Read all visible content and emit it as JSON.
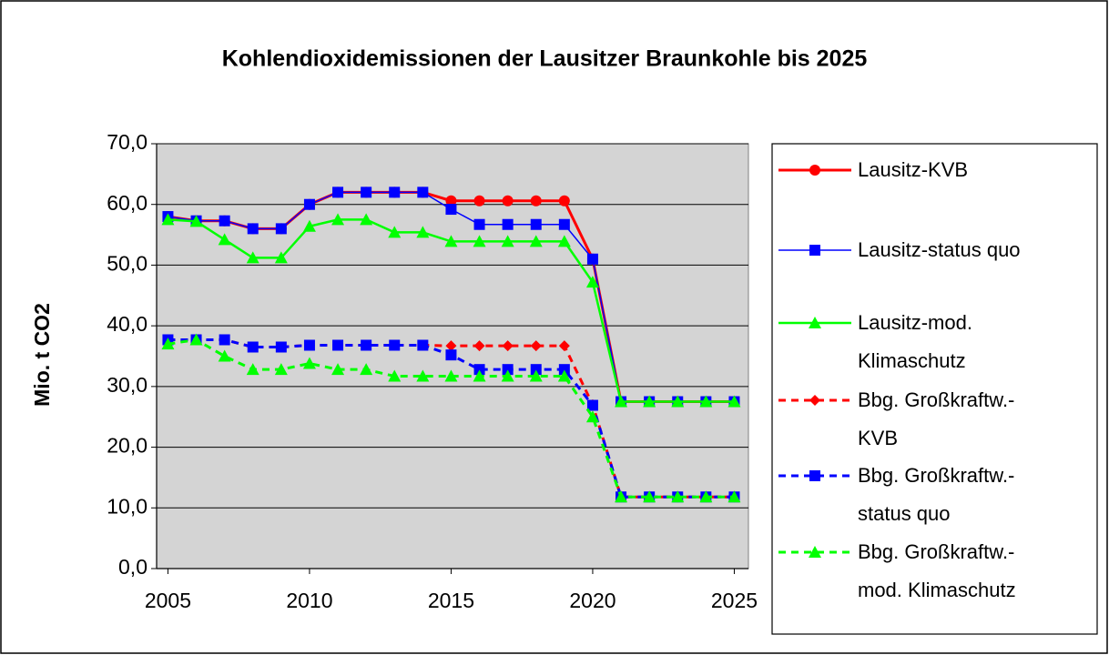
{
  "chart_data": {
    "type": "line",
    "title": "Kohlendioxidemissionen der Lausitzer Braunkohle bis 2025",
    "y_label": "Mio. t CO2",
    "x": [
      2005,
      2006,
      2007,
      2008,
      2009,
      2010,
      2011,
      2012,
      2013,
      2014,
      2015,
      2016,
      2017,
      2018,
      2019,
      2020,
      2021,
      2022,
      2023,
      2024,
      2025
    ],
    "xlim": [
      2004.6,
      2025.5
    ],
    "xticks": [
      2005,
      2010,
      2015,
      2020,
      2025
    ],
    "ylim": [
      0,
      70
    ],
    "yticks": [
      {
        "value": 0,
        "label": "0,0"
      },
      {
        "value": 10,
        "label": "10,0"
      },
      {
        "value": 20,
        "label": "20,0"
      },
      {
        "value": 30,
        "label": "30,0"
      },
      {
        "value": 40,
        "label": "40,0"
      },
      {
        "value": 50,
        "label": "50,0"
      },
      {
        "value": 60,
        "label": "60,0"
      },
      {
        "value": 70,
        "label": "70,0"
      }
    ],
    "grid": true,
    "legend": "right",
    "series": [
      {
        "name": "Lausitz-KVB",
        "color": "#ff0000",
        "line_style": "solid",
        "marker": "circle",
        "values": [
          58,
          57.3,
          57.3,
          56,
          56,
          60,
          62,
          62,
          62,
          62,
          60.6,
          60.6,
          60.6,
          60.6,
          60.6,
          51,
          27.5,
          27.5,
          27.5,
          27.5,
          27.5
        ]
      },
      {
        "name": "Lausitz-status quo",
        "color": "#0000ff",
        "line_style": "solid",
        "marker": "square",
        "values": [
          58,
          57.3,
          57.3,
          56,
          56,
          60,
          62,
          62,
          62,
          62,
          59.2,
          56.7,
          56.7,
          56.7,
          56.7,
          51,
          27.5,
          27.5,
          27.5,
          27.5,
          27.5
        ]
      },
      {
        "name": "Lausitz-mod.\nKlimaschutz",
        "color": "#00ff00",
        "line_style": "solid",
        "marker": "triangle",
        "values": [
          57.5,
          57.2,
          54.2,
          51.2,
          51.2,
          56.4,
          57.5,
          57.5,
          55.4,
          55.4,
          53.9,
          53.9,
          53.9,
          53.9,
          53.9,
          47.2,
          27.5,
          27.5,
          27.5,
          27.5,
          27.5
        ]
      },
      {
        "name": "Bbg. Großkraftw.-\nKVB",
        "color": "#ff0000",
        "line_style": "dashed",
        "marker": "diamond",
        "values": [
          37.7,
          37.7,
          37.7,
          36.5,
          36.5,
          36.8,
          36.8,
          36.8,
          36.8,
          36.8,
          36.7,
          36.7,
          36.7,
          36.7,
          36.7,
          27,
          11.8,
          11.8,
          11.8,
          11.8,
          11.8
        ]
      },
      {
        "name": "Bbg. Großkraftw.-\nstatus quo",
        "color": "#0000ff",
        "line_style": "dashed",
        "marker": "square",
        "values": [
          37.7,
          37.7,
          37.7,
          36.5,
          36.5,
          36.8,
          36.8,
          36.8,
          36.8,
          36.8,
          35.2,
          32.8,
          32.8,
          32.8,
          32.8,
          26.9,
          11.8,
          11.8,
          11.8,
          11.8,
          11.8
        ]
      },
      {
        "name": "Bbg. Großkraftw.-\nmod. Klimaschutz",
        "color": "#00ff00",
        "line_style": "dashed",
        "marker": "triangle",
        "values": [
          37,
          37.7,
          35,
          32.8,
          32.8,
          33.8,
          32.8,
          32.8,
          31.7,
          31.7,
          31.7,
          31.7,
          31.7,
          31.7,
          31.7,
          25,
          11.8,
          11.8,
          11.8,
          11.8,
          11.8
        ]
      }
    ]
  }
}
